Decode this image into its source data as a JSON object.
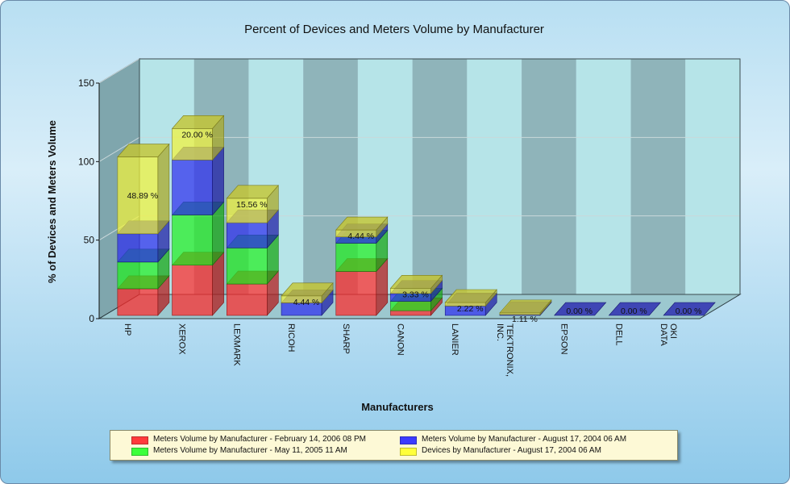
{
  "chart_data": {
    "type": "bar",
    "stacked": true,
    "three_d": true,
    "title": "Percent of Devices and Meters Volume by Manufacturer",
    "xlabel": "Manufacturers",
    "ylabel": "% of Devices and Meters Volume",
    "ylim": [
      0,
      150
    ],
    "yticks": [
      "0",
      "50",
      "100",
      "150"
    ],
    "categories": [
      "HP",
      "XEROX",
      "LEXMARK",
      "RICOH",
      "SHARP",
      "CANON",
      "LANIER",
      "TEKTRONIX, INC.",
      "EPSON",
      "DELL",
      "OKI DATA"
    ],
    "series": [
      {
        "name": "Meters Volume by Manufacturer - February 14, 2006 08 PM",
        "color": "#ff2a2a",
        "values": [
          17,
          32,
          20,
          0,
          28,
          3,
          0,
          0,
          0,
          0,
          0
        ]
      },
      {
        "name": "Meters Volume by Manufacturer - May 11, 2005 11 AM",
        "color": "#22ee22",
        "values": [
          17,
          32,
          23,
          0,
          18,
          6,
          0,
          0,
          0,
          0,
          0
        ]
      },
      {
        "name": "Meters Volume by Manufacturer - August 17, 2004 06 AM",
        "color": "#2f2fee",
        "values": [
          18,
          35,
          16,
          8,
          4,
          5,
          6,
          0.5,
          0,
          0,
          0
        ]
      },
      {
        "name": "Devices by Manufacturer - August 17, 2004 06 AM",
        "color": "#f2f23a",
        "values": [
          48.89,
          20.0,
          15.56,
          4.44,
          4.44,
          3.33,
          2.22,
          1.11,
          0,
          0,
          0
        ]
      }
    ],
    "data_labels": [
      "48.89 %",
      "20.00 %",
      "15.56 %",
      "4.44 %",
      "4.44 %",
      "3.33 %",
      "2.22 %",
      "1.11 %",
      "0.00 %",
      "0.00 %",
      "0.00 %"
    ]
  },
  "legend": {
    "items": [
      {
        "label": "Meters Volume by Manufacturer - February 14, 2006 08 PM",
        "color": "#ff3b3b"
      },
      {
        "label": "Meters Volume by Manufacturer - August 17, 2004 06 AM",
        "color": "#3b3bff"
      },
      {
        "label": "Meters Volume by Manufacturer - May 11, 2005 11 AM",
        "color": "#3bff3b"
      },
      {
        "label": "Devices by Manufacturer - August 17, 2004 06 AM",
        "color": "#ffff3b"
      }
    ]
  }
}
